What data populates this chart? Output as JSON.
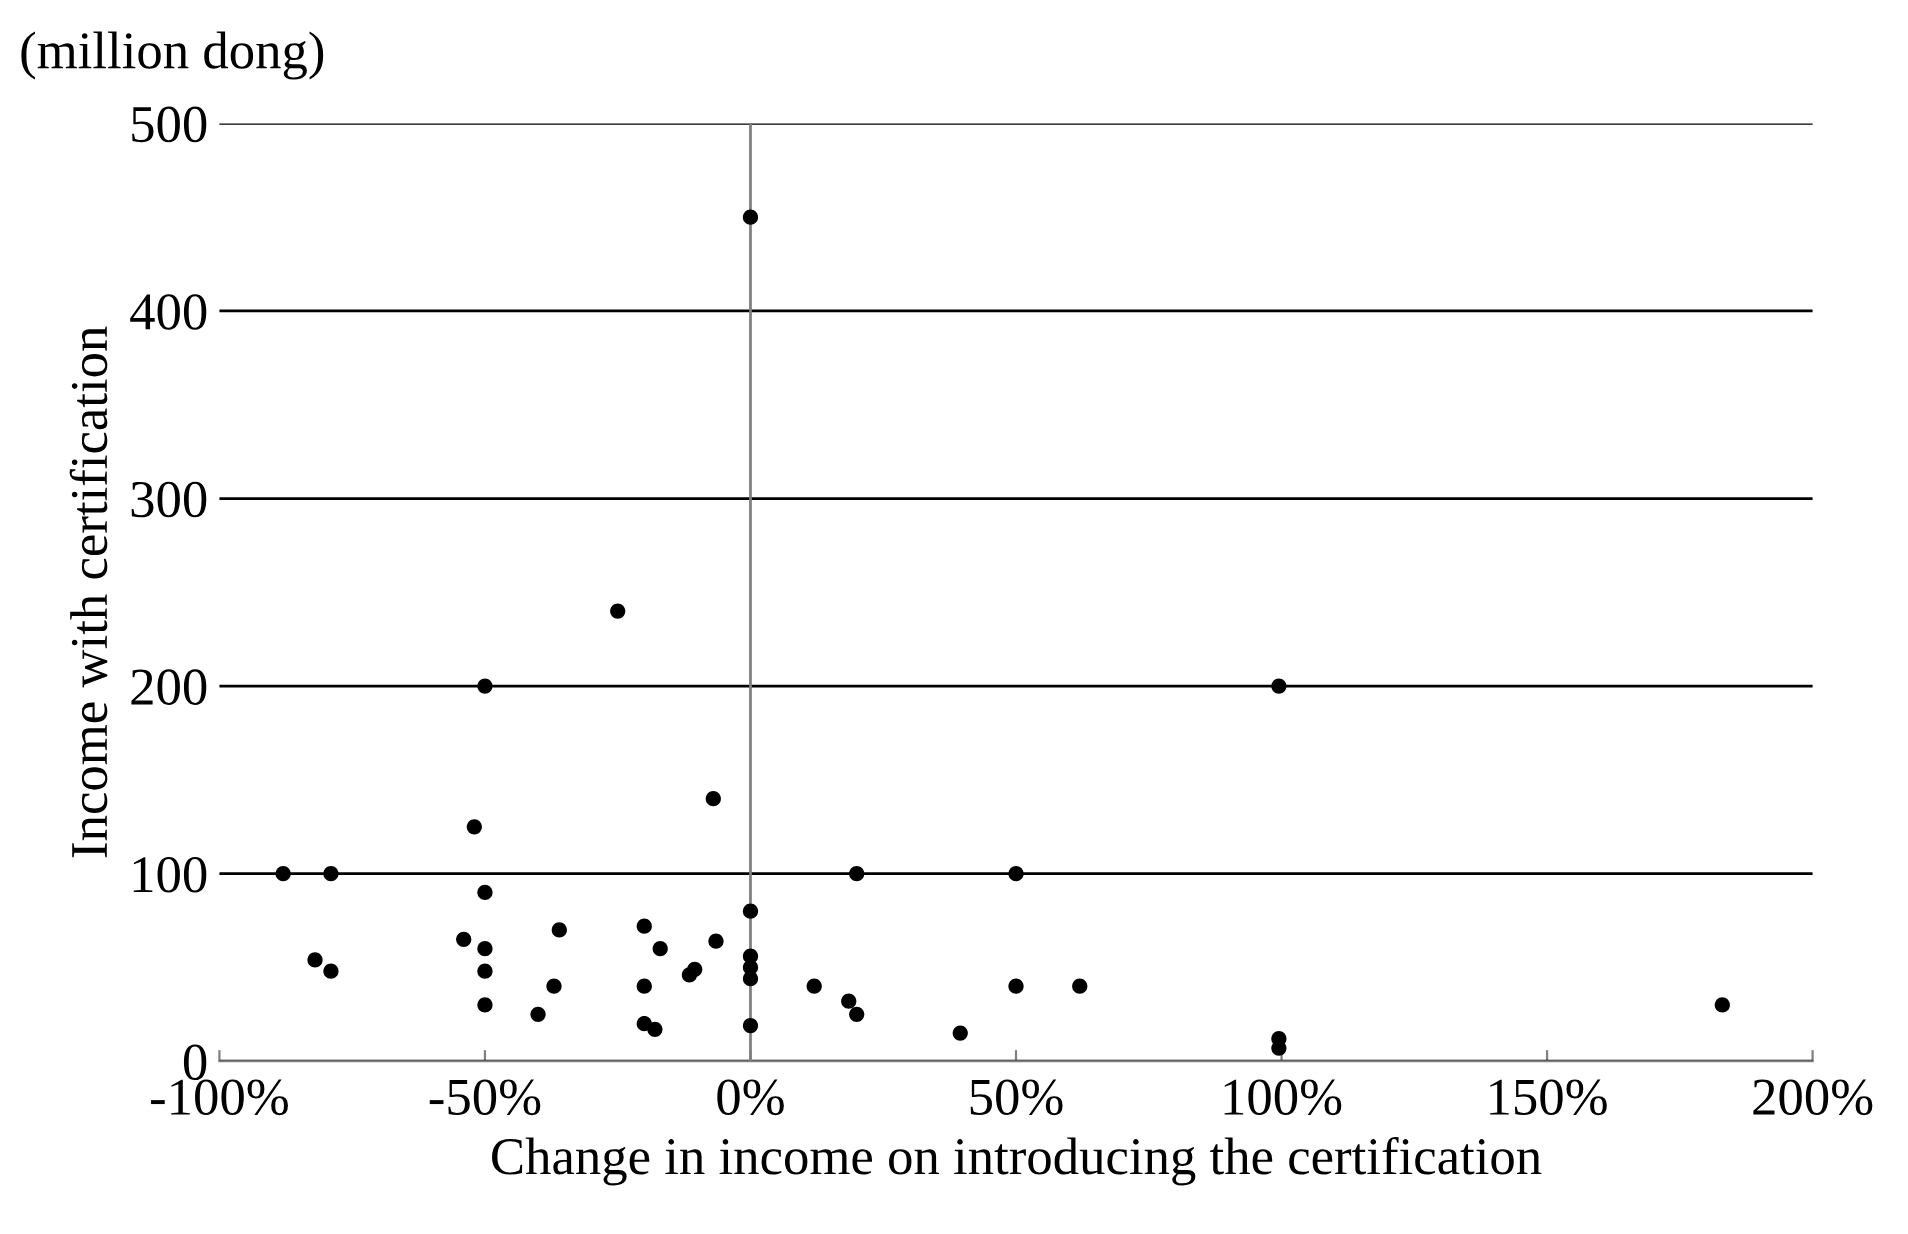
{
  "chart_data": {
    "type": "scatter",
    "xlabel": "Change in income on introducing the certification",
    "ylabel": "Income with certification",
    "annotations": [
      "(million dong)"
    ],
    "x": [
      -88,
      -79,
      -82,
      -79,
      -54,
      -52,
      -50,
      -50,
      -50,
      -50,
      -50,
      -40,
      -36,
      -37,
      -25,
      -20,
      -20,
      -20,
      -18,
      -17,
      -11.5,
      -10.5,
      -7,
      -6.5,
      0,
      0,
      0,
      0,
      0,
      0,
      12,
      18.5,
      20,
      20,
      39.5,
      50,
      50,
      62,
      99.5,
      99.5,
      99.5,
      183
    ],
    "series": [
      {
        "color": "#000000",
        "values": [
          100,
          100,
          54,
          48,
          65,
          125,
          200,
          90,
          60,
          48,
          30,
          25,
          70,
          40,
          240,
          72,
          40,
          20,
          17,
          60,
          46,
          49,
          140,
          64,
          450,
          80,
          56,
          50,
          44,
          19,
          40,
          32,
          100,
          25,
          15,
          100,
          40,
          40,
          200,
          12,
          7,
          30
        ]
      }
    ],
    "marker": "circle",
    "xlim": [
      -100,
      200
    ],
    "xticks": [
      {
        "value": -100,
        "label": "-100%"
      },
      {
        "value": -50,
        "label": "-50%"
      },
      {
        "value": 0,
        "label": "0%"
      },
      {
        "value": 50,
        "label": "50%"
      },
      {
        "value": 100,
        "label": "100%"
      },
      {
        "value": 150,
        "label": "150%"
      },
      {
        "value": 200,
        "label": "200%"
      }
    ],
    "ylim": [
      0,
      500
    ],
    "yticks": [
      0,
      100,
      200,
      300,
      400,
      500
    ],
    "grid": "y",
    "ref_lines": [
      {
        "axis": "x",
        "value": 0,
        "color": "#808080"
      }
    ]
  }
}
